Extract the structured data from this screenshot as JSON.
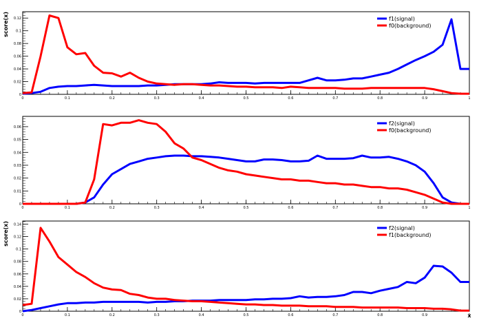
{
  "chart_data": [
    {
      "type": "line",
      "xlabel": "",
      "ylabel": "score(x)",
      "xlim": [
        0,
        1
      ],
      "ylim": [
        0,
        0.13
      ],
      "xticks": [
        "0",
        "0.1",
        "0.2",
        "0.3",
        "0.4",
        "0.5",
        "0.6",
        "0.7",
        "0.8",
        "0.9",
        "1"
      ],
      "yticks": [
        "0",
        "0.02",
        "0.04",
        "0.06",
        "0.08",
        "0.1",
        "0.12"
      ],
      "legend": "top-right",
      "series": [
        {
          "name": "f1(signal)",
          "color": "#0000ff",
          "x": [
            0,
            0.02,
            0.04,
            0.06,
            0.08,
            0.1,
            0.12,
            0.14,
            0.16,
            0.18,
            0.2,
            0.22,
            0.24,
            0.26,
            0.28,
            0.3,
            0.32,
            0.34,
            0.36,
            0.38,
            0.4,
            0.42,
            0.44,
            0.46,
            0.48,
            0.5,
            0.52,
            0.54,
            0.56,
            0.58,
            0.6,
            0.62,
            0.64,
            0.66,
            0.68,
            0.7,
            0.72,
            0.74,
            0.76,
            0.78,
            0.8,
            0.82,
            0.84,
            0.86,
            0.88,
            0.9,
            0.92,
            0.94,
            0.96,
            0.98,
            1.0
          ],
          "y": [
            0.001,
            0.002,
            0.004,
            0.01,
            0.012,
            0.013,
            0.013,
            0.014,
            0.015,
            0.014,
            0.013,
            0.013,
            0.013,
            0.013,
            0.014,
            0.014,
            0.015,
            0.016,
            0.016,
            0.016,
            0.016,
            0.017,
            0.019,
            0.018,
            0.018,
            0.018,
            0.017,
            0.018,
            0.018,
            0.018,
            0.018,
            0.018,
            0.022,
            0.026,
            0.022,
            0.022,
            0.023,
            0.025,
            0.025,
            0.028,
            0.031,
            0.034,
            0.04,
            0.047,
            0.054,
            0.06,
            0.067,
            0.078,
            0.118,
            0.04,
            0.04
          ]
        },
        {
          "name": "f0(background)",
          "color": "#ff0000",
          "x": [
            0,
            0.02,
            0.04,
            0.06,
            0.08,
            0.1,
            0.12,
            0.14,
            0.16,
            0.18,
            0.2,
            0.22,
            0.24,
            0.26,
            0.28,
            0.3,
            0.32,
            0.34,
            0.36,
            0.38,
            0.4,
            0.42,
            0.44,
            0.46,
            0.48,
            0.5,
            0.52,
            0.54,
            0.56,
            0.58,
            0.6,
            0.62,
            0.64,
            0.66,
            0.68,
            0.7,
            0.72,
            0.74,
            0.76,
            0.78,
            0.8,
            0.82,
            0.84,
            0.86,
            0.88,
            0.9,
            0.92,
            0.94,
            0.96,
            0.98,
            1.0
          ],
          "y": [
            0.002,
            0.003,
            0.06,
            0.124,
            0.12,
            0.074,
            0.063,
            0.065,
            0.045,
            0.034,
            0.033,
            0.028,
            0.034,
            0.026,
            0.02,
            0.017,
            0.016,
            0.015,
            0.016,
            0.016,
            0.015,
            0.014,
            0.014,
            0.013,
            0.012,
            0.012,
            0.011,
            0.011,
            0.011,
            0.01,
            0.012,
            0.011,
            0.01,
            0.01,
            0.01,
            0.01,
            0.009,
            0.009,
            0.009,
            0.01,
            0.01,
            0.01,
            0.01,
            0.01,
            0.01,
            0.01,
            0.008,
            0.005,
            0.002,
            0.001,
            0.001
          ]
        }
      ]
    },
    {
      "type": "line",
      "xlabel": "",
      "ylabel": "",
      "xlim": [
        0,
        1
      ],
      "ylim": [
        0,
        0.068
      ],
      "xticks": [
        "0",
        "0.1",
        "0.2",
        "0.3",
        "0.4",
        "0.5",
        "0.6",
        "0.7",
        "0.8",
        "0.9",
        "1"
      ],
      "yticks": [
        "0",
        "0.01",
        "0.02",
        "0.03",
        "0.04",
        "0.05",
        "0.06"
      ],
      "legend": "top-right",
      "series": [
        {
          "name": "f2(signal)",
          "color": "#0000ff",
          "x": [
            0,
            0.02,
            0.04,
            0.06,
            0.08,
            0.1,
            0.12,
            0.14,
            0.16,
            0.18,
            0.2,
            0.22,
            0.24,
            0.26,
            0.28,
            0.3,
            0.32,
            0.34,
            0.36,
            0.38,
            0.4,
            0.42,
            0.44,
            0.46,
            0.48,
            0.5,
            0.52,
            0.54,
            0.56,
            0.58,
            0.6,
            0.62,
            0.64,
            0.66,
            0.68,
            0.7,
            0.72,
            0.74,
            0.76,
            0.78,
            0.8,
            0.82,
            0.84,
            0.86,
            0.88,
            0.9,
            0.92,
            0.94,
            0.96,
            0.98,
            1.0
          ],
          "y": [
            0,
            0,
            0,
            0,
            0,
            0,
            0,
            0.001,
            0.005,
            0.015,
            0.023,
            0.027,
            0.031,
            0.033,
            0.035,
            0.036,
            0.037,
            0.0375,
            0.0375,
            0.037,
            0.037,
            0.0365,
            0.036,
            0.035,
            0.034,
            0.033,
            0.033,
            0.0345,
            0.0345,
            0.034,
            0.033,
            0.033,
            0.0335,
            0.0375,
            0.035,
            0.035,
            0.035,
            0.0355,
            0.0375,
            0.036,
            0.036,
            0.0365,
            0.035,
            0.033,
            0.03,
            0.025,
            0.016,
            0.005,
            0.001,
            0,
            0
          ]
        },
        {
          "name": "f0(background)",
          "color": "#ff0000",
          "x": [
            0,
            0.02,
            0.04,
            0.06,
            0.08,
            0.1,
            0.12,
            0.14,
            0.16,
            0.18,
            0.2,
            0.22,
            0.24,
            0.26,
            0.28,
            0.3,
            0.32,
            0.34,
            0.36,
            0.38,
            0.4,
            0.42,
            0.44,
            0.46,
            0.48,
            0.5,
            0.52,
            0.54,
            0.56,
            0.58,
            0.6,
            0.62,
            0.64,
            0.66,
            0.68,
            0.7,
            0.72,
            0.74,
            0.76,
            0.78,
            0.8,
            0.82,
            0.84,
            0.86,
            0.88,
            0.9,
            0.92,
            0.94,
            0.96,
            0.98,
            1.0
          ],
          "y": [
            0,
            0,
            0,
            0,
            0,
            0,
            0,
            0.001,
            0.019,
            0.062,
            0.061,
            0.063,
            0.063,
            0.065,
            0.063,
            0.062,
            0.056,
            0.047,
            0.043,
            0.036,
            0.034,
            0.031,
            0.028,
            0.026,
            0.025,
            0.023,
            0.022,
            0.021,
            0.02,
            0.019,
            0.019,
            0.018,
            0.018,
            0.017,
            0.016,
            0.016,
            0.015,
            0.015,
            0.014,
            0.013,
            0.013,
            0.012,
            0.012,
            0.011,
            0.009,
            0.007,
            0.004,
            0.001,
            0,
            0,
            0
          ]
        }
      ]
    },
    {
      "type": "line",
      "xlabel": "x",
      "ylabel": "score(x)",
      "xlim": [
        0,
        1
      ],
      "ylim": [
        0,
        0.145
      ],
      "xticks": [
        "0",
        "0.1",
        "0.2",
        "0.3",
        "0.4",
        "0.5",
        "0.6",
        "0.7",
        "0.8",
        "0.9",
        "1"
      ],
      "yticks": [
        "0",
        "0.02",
        "0.04",
        "0.06",
        "0.08",
        "0.1",
        "0.12",
        "0.14"
      ],
      "legend": "top-right",
      "series": [
        {
          "name": "f2(signal)",
          "color": "#0000ff",
          "x": [
            0,
            0.02,
            0.04,
            0.06,
            0.08,
            0.1,
            0.12,
            0.14,
            0.16,
            0.18,
            0.2,
            0.22,
            0.24,
            0.26,
            0.28,
            0.3,
            0.32,
            0.34,
            0.36,
            0.38,
            0.4,
            0.42,
            0.44,
            0.46,
            0.48,
            0.5,
            0.52,
            0.54,
            0.56,
            0.58,
            0.6,
            0.62,
            0.64,
            0.66,
            0.68,
            0.7,
            0.72,
            0.74,
            0.76,
            0.78,
            0.8,
            0.82,
            0.84,
            0.86,
            0.88,
            0.9,
            0.92,
            0.94,
            0.96,
            0.98,
            1.0
          ],
          "y": [
            0,
            0.002,
            0.005,
            0.008,
            0.011,
            0.013,
            0.013,
            0.014,
            0.014,
            0.015,
            0.015,
            0.015,
            0.015,
            0.015,
            0.014,
            0.015,
            0.015,
            0.016,
            0.016,
            0.017,
            0.017,
            0.017,
            0.018,
            0.018,
            0.018,
            0.018,
            0.019,
            0.019,
            0.02,
            0.02,
            0.021,
            0.024,
            0.022,
            0.023,
            0.023,
            0.024,
            0.026,
            0.031,
            0.031,
            0.029,
            0.033,
            0.036,
            0.039,
            0.047,
            0.045,
            0.054,
            0.073,
            0.072,
            0.062,
            0.047,
            0.047
          ]
        },
        {
          "name": "f1(background)",
          "color": "#ff0000",
          "x": [
            0,
            0.02,
            0.04,
            0.06,
            0.08,
            0.1,
            0.12,
            0.14,
            0.16,
            0.18,
            0.2,
            0.22,
            0.24,
            0.26,
            0.28,
            0.3,
            0.32,
            0.34,
            0.36,
            0.38,
            0.4,
            0.42,
            0.44,
            0.46,
            0.48,
            0.5,
            0.52,
            0.54,
            0.56,
            0.58,
            0.6,
            0.62,
            0.64,
            0.66,
            0.68,
            0.7,
            0.72,
            0.74,
            0.76,
            0.78,
            0.8,
            0.82,
            0.84,
            0.86,
            0.88,
            0.9,
            0.92,
            0.94,
            0.96,
            0.98,
            1.0
          ],
          "y": [
            0.01,
            0.012,
            0.134,
            0.112,
            0.087,
            0.075,
            0.063,
            0.055,
            0.045,
            0.038,
            0.035,
            0.034,
            0.028,
            0.026,
            0.022,
            0.02,
            0.02,
            0.018,
            0.017,
            0.016,
            0.016,
            0.015,
            0.014,
            0.013,
            0.012,
            0.011,
            0.011,
            0.01,
            0.01,
            0.009,
            0.009,
            0.009,
            0.008,
            0.008,
            0.008,
            0.007,
            0.007,
            0.007,
            0.006,
            0.006,
            0.006,
            0.006,
            0.006,
            0.005,
            0.005,
            0.005,
            0.004,
            0.004,
            0.003,
            0.001,
            0.001
          ]
        }
      ]
    }
  ]
}
